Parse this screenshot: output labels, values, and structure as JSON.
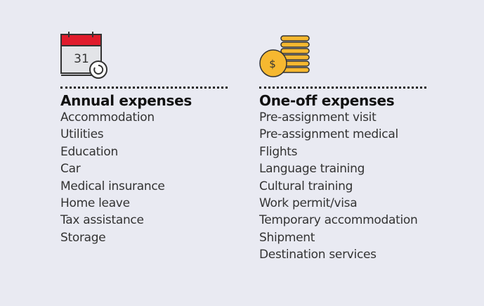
{
  "columns": [
    {
      "icon_text": "31",
      "title": "Annual expenses",
      "items": [
        "Accommodation",
        "Utilities",
        "Education",
        "Car",
        "Medical insurance",
        "Home leave",
        "Tax assistance",
        "Storage"
      ]
    },
    {
      "icon_text": "$",
      "title": "One-off expenses",
      "items": [
        "Pre-assignment visit",
        "Pre-assignment medical",
        "Flights",
        "Language training",
        "Cultural training",
        "Work permit/visa",
        "Temporary accommodation",
        "Shipment",
        "Destination services"
      ]
    }
  ]
}
